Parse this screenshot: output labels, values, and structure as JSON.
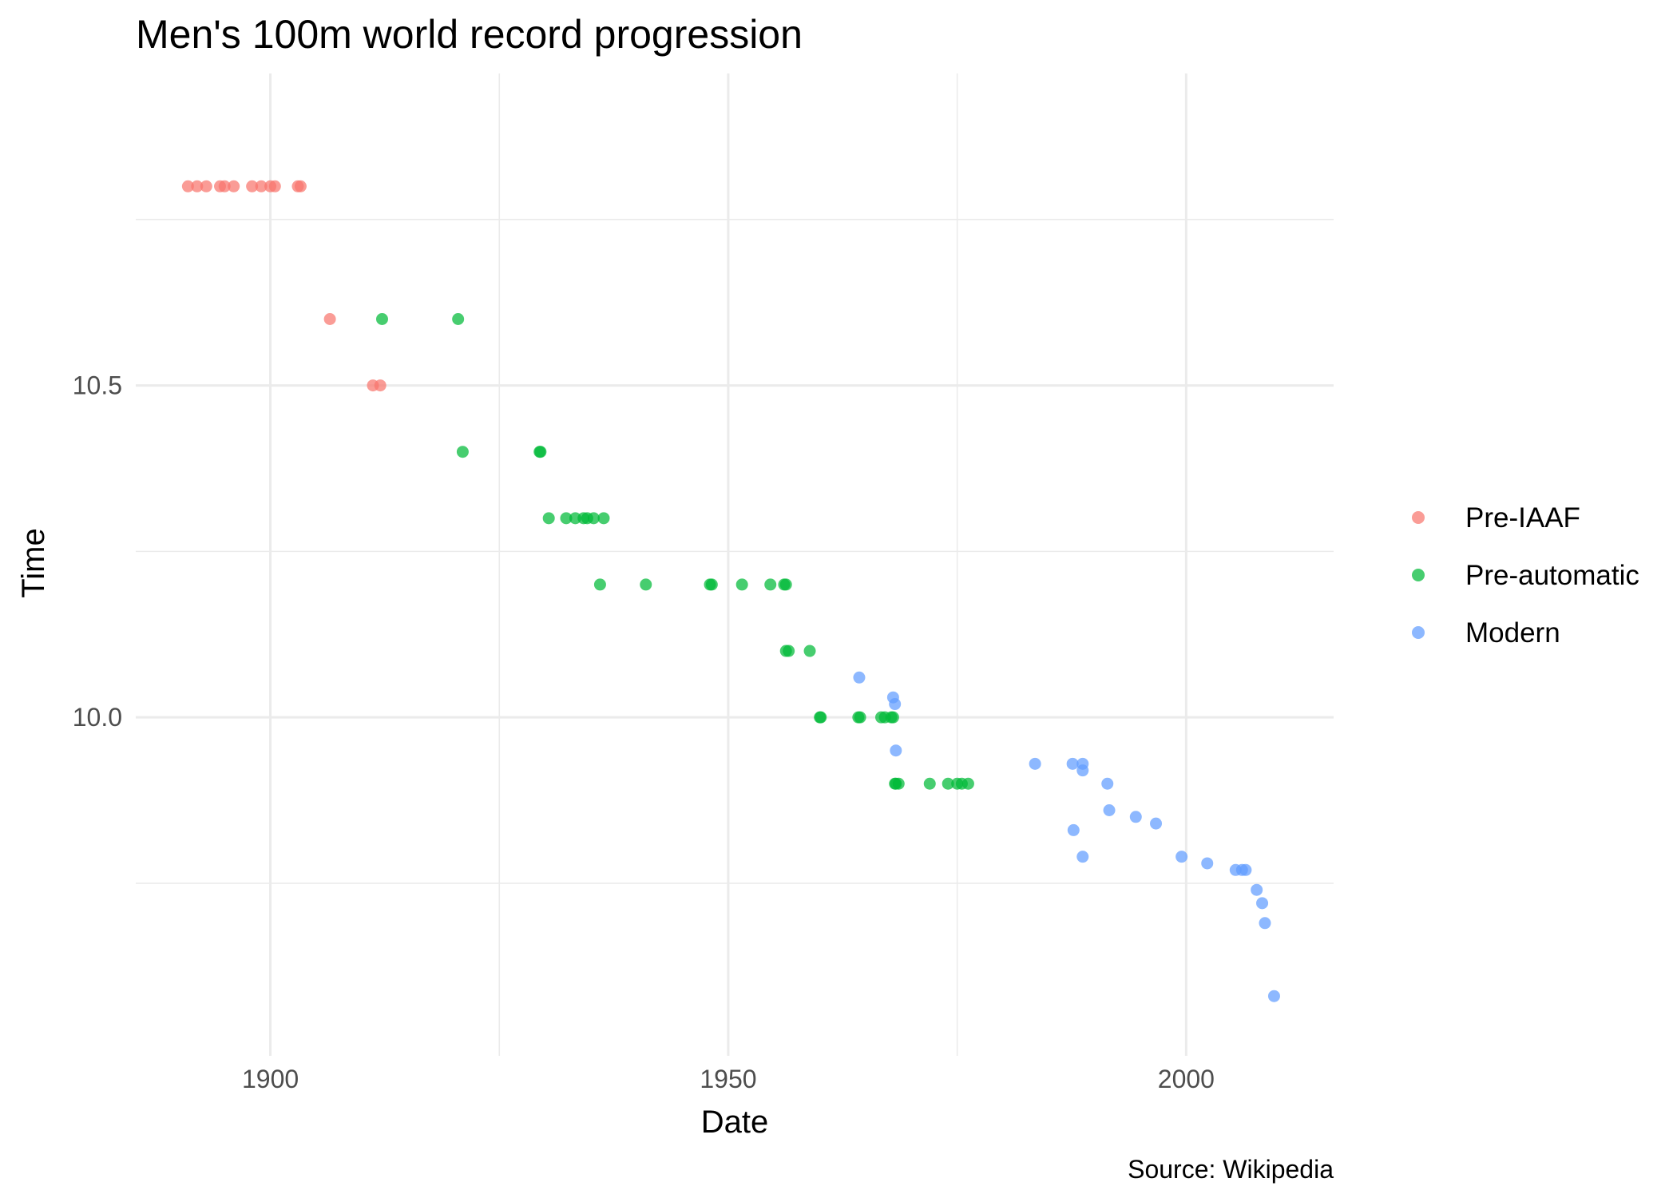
{
  "chart_data": {
    "type": "scatter",
    "title": "Men's 100m world record progression",
    "xlabel": "Date",
    "ylabel": "Time",
    "caption": "Source: Wikipedia",
    "x_unit": "year",
    "xlim": [
      1885.3,
      2016.1
    ],
    "ylim": [
      9.49,
      10.97
    ],
    "x_ticks": [
      1900,
      1950,
      2000
    ],
    "x_tick_labels": [
      "1900",
      "1950",
      "2000"
    ],
    "y_ticks": [
      10.0,
      10.5
    ],
    "y_tick_labels": [
      "10.0",
      "10.5"
    ],
    "grid": true,
    "legend_position": "right",
    "series": [
      {
        "name": "Pre-IAAF",
        "color": "#f8766d",
        "points": [
          [
            1891.0,
            10.8
          ],
          [
            1892.0,
            10.8
          ],
          [
            1893.0,
            10.8
          ],
          [
            1894.5,
            10.8
          ],
          [
            1895.0,
            10.8
          ],
          [
            1896.0,
            10.8
          ],
          [
            1898.0,
            10.8
          ],
          [
            1899.0,
            10.8
          ],
          [
            1900.0,
            10.8
          ],
          [
            1900.5,
            10.8
          ],
          [
            1903.0,
            10.8
          ],
          [
            1903.3,
            10.8
          ],
          [
            1906.5,
            10.6
          ],
          [
            1911.2,
            10.5
          ],
          [
            1912.0,
            10.5
          ]
        ]
      },
      {
        "name": "Pre-automatic",
        "color": "#00ba38",
        "points": [
          [
            1912.2,
            10.6
          ],
          [
            1920.5,
            10.6
          ],
          [
            1921.0,
            10.4
          ],
          [
            1929.4,
            10.4
          ],
          [
            1929.5,
            10.4
          ],
          [
            1930.4,
            10.3
          ],
          [
            1932.3,
            10.3
          ],
          [
            1933.3,
            10.3
          ],
          [
            1934.2,
            10.3
          ],
          [
            1934.6,
            10.3
          ],
          [
            1935.3,
            10.3
          ],
          [
            1936.4,
            10.3
          ],
          [
            1936.0,
            10.2
          ],
          [
            1941.0,
            10.2
          ],
          [
            1948.0,
            10.2
          ],
          [
            1948.2,
            10.2
          ],
          [
            1951.5,
            10.2
          ],
          [
            1954.6,
            10.2
          ],
          [
            1956.1,
            10.2
          ],
          [
            1956.3,
            10.2
          ],
          [
            1956.3,
            10.1
          ],
          [
            1956.6,
            10.1
          ],
          [
            1958.9,
            10.1
          ],
          [
            1960.0,
            10.0
          ],
          [
            1960.1,
            10.0
          ],
          [
            1964.2,
            10.0
          ],
          [
            1964.4,
            10.0
          ],
          [
            1966.7,
            10.0
          ],
          [
            1967.1,
            10.0
          ],
          [
            1967.8,
            10.0
          ],
          [
            1968.0,
            10.0
          ],
          [
            1968.2,
            9.9
          ],
          [
            1968.3,
            9.9
          ],
          [
            1968.6,
            9.9
          ],
          [
            1972.0,
            9.9
          ],
          [
            1974.0,
            9.9
          ],
          [
            1975.0,
            9.9
          ],
          [
            1975.5,
            9.9
          ],
          [
            1976.2,
            9.9
          ]
        ]
      },
      {
        "name": "Modern",
        "color": "#619cff",
        "points": [
          [
            1964.3,
            10.06
          ],
          [
            1968.0,
            10.03
          ],
          [
            1968.2,
            10.02
          ],
          [
            1968.3,
            9.95
          ],
          [
            1983.5,
            9.93
          ],
          [
            1987.6,
            9.93
          ],
          [
            1988.7,
            9.93
          ],
          [
            1988.7,
            9.92
          ],
          [
            1991.4,
            9.9
          ],
          [
            1991.6,
            9.86
          ],
          [
            1994.5,
            9.85
          ],
          [
            1996.7,
            9.84
          ],
          [
            1987.7,
            9.83
          ],
          [
            1988.7,
            9.79
          ],
          [
            1999.5,
            9.79
          ],
          [
            2002.3,
            9.78
          ],
          [
            2005.4,
            9.77
          ],
          [
            2006.1,
            9.77
          ],
          [
            2006.5,
            9.77
          ],
          [
            2007.7,
            9.74
          ],
          [
            2008.3,
            9.72
          ],
          [
            2008.6,
            9.69
          ],
          [
            2009.6,
            9.58
          ]
        ]
      }
    ]
  }
}
